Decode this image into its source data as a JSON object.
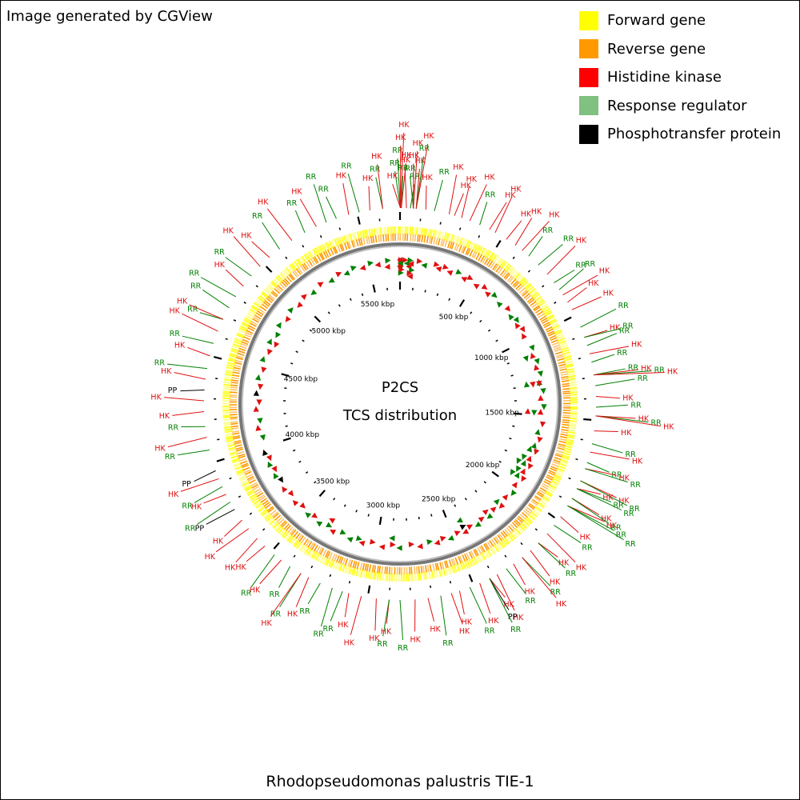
{
  "credit": "Image generated by CGView",
  "organism": "Rhodopseudomonas palustris TIE-1",
  "center": {
    "line1": "P2CS",
    "line2": "TCS distribution"
  },
  "legend": [
    {
      "label": "Forward gene",
      "color": "#ffff00"
    },
    {
      "label": "Reverse gene",
      "color": "#ff9900"
    },
    {
      "label": "Histidine kinase",
      "color": "#ff0000"
    },
    {
      "label": "Response regulator",
      "color": "#80c080"
    },
    {
      "label": "Phosphotransfer protein",
      "color": "#000000"
    }
  ],
  "colors": {
    "HK": "#e01010",
    "RR": "#008000",
    "PP": "#000000"
  },
  "genome": {
    "length_kbp": 5700,
    "tick_labels": [
      "500 kbp",
      "1000 kbp",
      "1500 kbp",
      "2000 kbp",
      "2500 kbp",
      "3000 kbp",
      "3500 kbp",
      "4000 kbp",
      "4500 kbp",
      "5000 kbp",
      "5500 kbp"
    ]
  },
  "features": [
    {
      "pos": 2,
      "labels": [
        "HK",
        "RR",
        "RR",
        "HK",
        "HK"
      ]
    },
    {
      "pos": 6,
      "labels": [
        "RR",
        "HK"
      ]
    },
    {
      "pos": 30,
      "labels": [
        "HK"
      ]
    },
    {
      "pos": 48,
      "labels": [
        "RR"
      ]
    },
    {
      "pos": 62,
      "labels": [
        "RR",
        "HK",
        "HK"
      ]
    },
    {
      "pos": 75,
      "labels": [
        "HK",
        "RR",
        "HK"
      ]
    },
    {
      "pos": 120,
      "labels": [
        "HK"
      ]
    },
    {
      "pos": 160,
      "labels": [
        "RR"
      ]
    },
    {
      "pos": 230,
      "labels": [
        "HK"
      ]
    },
    {
      "pos": 255,
      "labels": [
        "HK"
      ]
    },
    {
      "pos": 290,
      "labels": [
        "HK"
      ]
    },
    {
      "pos": 330,
      "labels": [
        "HK"
      ]
    },
    {
      "pos": 380,
      "labels": [
        "RR"
      ]
    },
    {
      "pos": 430,
      "labels": [
        "HK"
      ]
    },
    {
      "pos": 460,
      "labels": [
        "HK"
      ]
    },
    {
      "pos": 520,
      "labels": [
        "HK"
      ]
    },
    {
      "pos": 570,
      "labels": [
        "HK"
      ]
    },
    {
      "pos": 610,
      "labels": [
        "HK"
      ]
    },
    {
      "pos": 650,
      "labels": [
        "RR"
      ]
    },
    {
      "pos": 710,
      "labels": [
        "RR"
      ]
    },
    {
      "pos": 770,
      "labels": [
        "HK"
      ]
    },
    {
      "pos": 820,
      "labels": [
        "RR"
      ]
    },
    {
      "pos": 860,
      "labels": [
        "RR"
      ]
    },
    {
      "pos": 890,
      "labels": [
        "HK"
      ]
    },
    {
      "pos": 930,
      "labels": [
        "HK"
      ]
    },
    {
      "pos": 970,
      "labels": [
        "HK"
      ]
    },
    {
      "pos": 1060,
      "labels": [
        "RR"
      ]
    },
    {
      "pos": 1110,
      "labels": [
        "HK",
        "RR"
      ]
    },
    {
      "pos": 1150,
      "labels": [
        "RR"
      ]
    },
    {
      "pos": 1190,
      "labels": [
        "HK"
      ]
    },
    {
      "pos": 1230,
      "labels": [
        "RR"
      ]
    },
    {
      "pos": 1290,
      "labels": [
        "RR",
        "HK",
        "RR",
        "HK"
      ]
    },
    {
      "pos": 1340,
      "labels": [
        "RR"
      ]
    },
    {
      "pos": 1390,
      "labels": [
        "HK"
      ]
    },
    {
      "pos": 1440,
      "labels": [
        "RR"
      ]
    },
    {
      "pos": 1480,
      "labels": [
        "HK",
        "RR",
        "HK"
      ]
    },
    {
      "pos": 1550,
      "labels": [
        "HK"
      ]
    },
    {
      "pos": 1610,
      "labels": [
        "RR"
      ]
    },
    {
      "pos": 1650,
      "labels": [
        "HK"
      ]
    },
    {
      "pos": 1700,
      "labels": [
        "RR"
      ]
    },
    {
      "pos": 1730,
      "labels": [
        "HK",
        "RR"
      ]
    },
    {
      "pos": 1790,
      "labels": [
        "HK",
        "RR"
      ]
    },
    {
      "pos": 1830,
      "labels": [
        "HK",
        "RR",
        "RR"
      ]
    },
    {
      "pos": 1880,
      "labels": [
        "HK",
        "RR"
      ]
    },
    {
      "pos": 1920,
      "labels": [
        "HK",
        "RR",
        "RR"
      ]
    },
    {
      "pos": 1980,
      "labels": [
        "HK"
      ]
    },
    {
      "pos": 2030,
      "labels": [
        "RR"
      ]
    },
    {
      "pos": 2080,
      "labels": [
        "HK"
      ]
    },
    {
      "pos": 2140,
      "labels": [
        "HK",
        "RR"
      ]
    },
    {
      "pos": 2190,
      "labels": [
        "HK"
      ]
    },
    {
      "pos": 2240,
      "labels": [
        "RR",
        "HK"
      ]
    },
    {
      "pos": 2290,
      "labels": [
        "HK"
      ]
    },
    {
      "pos": 2330,
      "labels": [
        "RR"
      ]
    },
    {
      "pos": 2380,
      "labels": [
        "HK"
      ]
    },
    {
      "pos": 2420,
      "labels": [
        "HK",
        "PP",
        "RR"
      ]
    },
    {
      "pos": 2470,
      "labels": [
        "HK"
      ]
    },
    {
      "pos": 2520,
      "labels": [
        "RR"
      ]
    },
    {
      "pos": 2570,
      "labels": [
        "HK"
      ]
    },
    {
      "pos": 2610,
      "labels": [
        "HK"
      ]
    },
    {
      "pos": 2660,
      "labels": [
        "RR"
      ]
    },
    {
      "pos": 2720,
      "labels": [
        "HK"
      ]
    },
    {
      "pos": 2780,
      "labels": [
        "HK"
      ]
    },
    {
      "pos": 2850,
      "labels": [
        "RR"
      ]
    },
    {
      "pos": 2900,
      "labels": [
        "HK",
        "RR"
      ]
    },
    {
      "pos": 2960,
      "labels": [
        "HK"
      ]
    },
    {
      "pos": 3030,
      "labels": [
        "HK"
      ]
    },
    {
      "pos": 3090,
      "labels": [
        "HK"
      ]
    },
    {
      "pos": 3120,
      "labels": [
        "RR"
      ]
    },
    {
      "pos": 3170,
      "labels": [
        "RR"
      ]
    },
    {
      "pos": 3230,
      "labels": [
        "RR"
      ]
    },
    {
      "pos": 3290,
      "labels": [
        "HK"
      ]
    },
    {
      "pos": 3330,
      "labels": [
        "RR",
        "HK"
      ]
    },
    {
      "pos": 3390,
      "labels": [
        "RR"
      ]
    },
    {
      "pos": 3440,
      "labels": [
        "HK"
      ]
    },
    {
      "pos": 3480,
      "labels": [
        "RR"
      ]
    },
    {
      "pos": 3540,
      "labels": [
        "HK"
      ]
    },
    {
      "pos": 3590,
      "labels": [
        "HK"
      ]
    },
    {
      "pos": 3650,
      "labels": [
        "HK"
      ]
    },
    {
      "pos": 3700,
      "labels": [
        "HK"
      ]
    },
    {
      "pos": 3760,
      "labels": [
        "PP"
      ]
    },
    {
      "pos": 3800,
      "labels": [
        "RR"
      ]
    },
    {
      "pos": 3840,
      "labels": [
        "HK"
      ]
    },
    {
      "pos": 3880,
      "labels": [
        "RR"
      ]
    },
    {
      "pos": 3920,
      "labels": [
        "HK"
      ]
    },
    {
      "pos": 3960,
      "labels": [
        "PP"
      ]
    },
    {
      "pos": 4060,
      "labels": [
        "RR"
      ]
    },
    {
      "pos": 4120,
      "labels": [
        "HK"
      ]
    },
    {
      "pos": 4170,
      "labels": [
        "RR"
      ]
    },
    {
      "pos": 4240,
      "labels": [
        "HK"
      ]
    },
    {
      "pos": 4290,
      "labels": [
        "HK"
      ]
    },
    {
      "pos": 4340,
      "labels": [
        "PP"
      ]
    },
    {
      "pos": 4390,
      "labels": [
        "HK"
      ]
    },
    {
      "pos": 4440,
      "labels": [
        "RR"
      ]
    },
    {
      "pos": 4500,
      "labels": [
        "HK"
      ]
    },
    {
      "pos": 4560,
      "labels": [
        "RR"
      ]
    },
    {
      "pos": 4620,
      "labels": [
        "HK"
      ]
    },
    {
      "pos": 4680,
      "labels": [
        "RR",
        "HK"
      ]
    },
    {
      "pos": 4740,
      "labels": [
        "RR"
      ]
    },
    {
      "pos": 4800,
      "labels": [
        "RR"
      ]
    },
    {
      "pos": 4860,
      "labels": [
        "HK"
      ]
    },
    {
      "pos": 4920,
      "labels": [
        "RR"
      ]
    },
    {
      "pos": 4980,
      "labels": [
        "HK"
      ]
    },
    {
      "pos": 5040,
      "labels": [
        "HK"
      ]
    },
    {
      "pos": 5100,
      "labels": [
        "RR"
      ]
    },
    {
      "pos": 5170,
      "labels": [
        "HK"
      ]
    },
    {
      "pos": 5240,
      "labels": [
        "RR"
      ]
    },
    {
      "pos": 5300,
      "labels": [
        "HK"
      ]
    },
    {
      "pos": 5350,
      "labels": [
        "RR"
      ]
    },
    {
      "pos": 5400,
      "labels": [
        "RR"
      ]
    },
    {
      "pos": 5460,
      "labels": [
        "HK"
      ]
    },
    {
      "pos": 5510,
      "labels": [
        "RR"
      ]
    },
    {
      "pos": 5560,
      "labels": [
        "HK"
      ]
    },
    {
      "pos": 5620,
      "labels": [
        "RR",
        "HK"
      ]
    }
  ]
}
